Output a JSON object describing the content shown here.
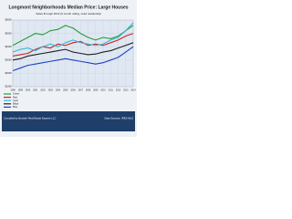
{
  "chart_data": {
    "type": "line",
    "title": "Longmont Neighborhoods Median Price: Large Houses",
    "subtitle": "Sales through 2014 (6 month rolling, used residential)",
    "footer_left": "Compiled by Boulder Real Estate Experts LLC",
    "footer_right": "Data Sources: IRES MLS",
    "categories": [
      "1998",
      "1999",
      "2000",
      "2001",
      "2002",
      "2003",
      "2004",
      "2005",
      "2006",
      "2007",
      "2008",
      "2009",
      "2010",
      "2011",
      "2012",
      "2013",
      "2014"
    ],
    "ylim": [
      100,
      600
    ],
    "yticks": [
      {
        "value": 100,
        "label": "$100K"
      },
      {
        "value": 200,
        "label": "$200K"
      },
      {
        "value": 300,
        "label": "$300K"
      },
      {
        "value": 400,
        "label": "$400K"
      },
      {
        "value": 500,
        "label": "$500K"
      },
      {
        "value": 600,
        "label": "$600K"
      }
    ],
    "grid": true,
    "series": [
      {
        "name": "Green",
        "color": "#2a9a3a",
        "values": [
          410,
          440,
          470,
          500,
          490,
          520,
          530,
          560,
          540,
          500,
          470,
          450,
          470,
          460,
          480,
          520,
          560
        ]
      },
      {
        "name": "Red",
        "color": "#d42020",
        "values": [
          330,
          340,
          350,
          380,
          400,
          390,
          420,
          410,
          430,
          440,
          410,
          420,
          410,
          430,
          450,
          480,
          500
        ]
      },
      {
        "name": "Cyan",
        "color": "#30b8d8",
        "values": [
          360,
          380,
          390,
          370,
          400,
          420,
          400,
          430,
          450,
          430,
          420,
          410,
          420,
          450,
          470,
          520,
          580
        ]
      },
      {
        "name": "Black",
        "color": "#202020",
        "values": [
          300,
          310,
          330,
          340,
          350,
          360,
          370,
          380,
          360,
          350,
          340,
          345,
          360,
          370,
          390,
          410,
          430
        ]
      },
      {
        "name": "Blue",
        "color": "#2040c0",
        "values": [
          220,
          240,
          260,
          270,
          280,
          290,
          300,
          310,
          300,
          290,
          280,
          270,
          280,
          300,
          320,
          360,
          400
        ]
      }
    ]
  }
}
